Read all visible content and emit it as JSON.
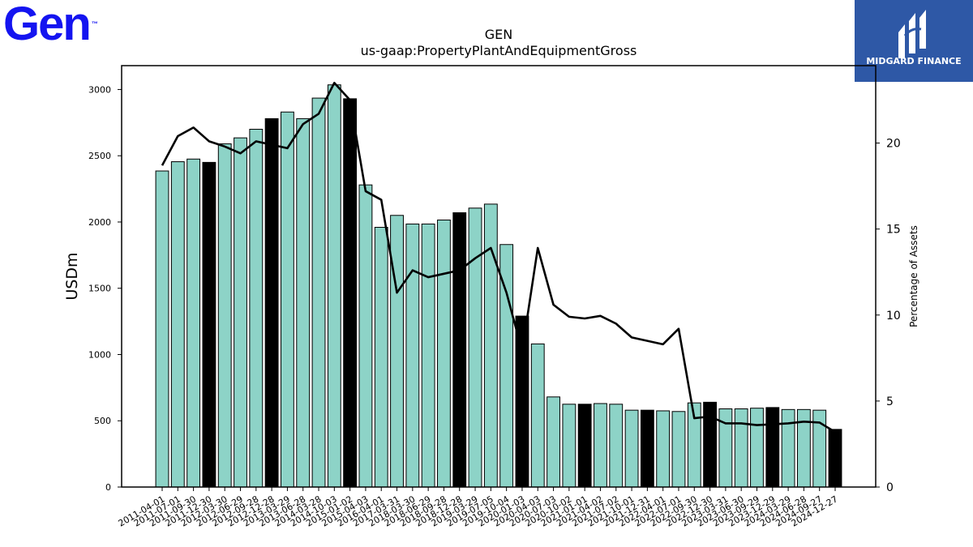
{
  "logos": {
    "left": {
      "text": "Gen",
      "mark": "™",
      "color": "#1414f0"
    },
    "right": {
      "text": "MIDGARD FINANCE",
      "color": "#2e58a6"
    }
  },
  "chart_data": {
    "type": "bar",
    "title": "GEN",
    "subtitle": "us-gaap:PropertyPlantAndEquipmentGross",
    "ylabel": "USDm",
    "y2label": "Percentage of Assets",
    "ylim": [
      0,
      3180
    ],
    "y2lim": [
      0,
      24.5
    ],
    "yticks": [
      0,
      500,
      1000,
      1500,
      2000,
      2500,
      3000
    ],
    "y2ticks": [
      0,
      5,
      10,
      15,
      20
    ],
    "grid": false,
    "bar_color": "#8dd3c7",
    "highlight_color": "#000000",
    "line_color": "#000000",
    "categories": [
      "2011-04-01",
      "2011-07-01",
      "2011-09-30",
      "2011-12-30",
      "2012-03-30",
      "2012-06-29",
      "2012-09-28",
      "2012-12-28",
      "2013-03-29",
      "2013-06-28",
      "2014-03-28",
      "2014-10-03",
      "2015-01-02",
      "2015-04-03",
      "2016-04-01",
      "2017-03-31",
      "2018-03-30",
      "2018-06-29",
      "2018-09-28",
      "2018-12-28",
      "2019-03-29",
      "2019-07-05",
      "2019-10-04",
      "2020-01-03",
      "2020-04-03",
      "2020-07-03",
      "2020-10-02",
      "2021-01-01",
      "2021-04-02",
      "2021-07-02",
      "2021-10-01",
      "2021-12-31",
      "2022-04-01",
      "2022-07-01",
      "2022-09-30",
      "2022-12-30",
      "2023-03-31",
      "2023-06-30",
      "2023-09-29",
      "2023-12-29",
      "2024-03-29",
      "2024-06-28",
      "2024-09-27",
      "2024-12-27"
    ],
    "series": [
      {
        "values": [
          2385,
          2455,
          2475,
          2450,
          2590,
          2635,
          2700,
          2780,
          2830,
          2780,
          2935,
          3035,
          2930,
          2280,
          1960,
          2050,
          1985,
          1985,
          2015,
          2070,
          2105,
          2135,
          1830,
          1290,
          1080,
          680,
          625,
          625,
          630,
          625,
          580,
          580,
          575,
          570,
          635,
          640,
          590,
          590,
          595,
          600,
          585,
          585,
          580,
          435
        ],
        "highlight": [
          false,
          false,
          false,
          true,
          false,
          false,
          false,
          true,
          false,
          false,
          false,
          false,
          true,
          false,
          false,
          false,
          false,
          false,
          false,
          true,
          false,
          false,
          false,
          true,
          false,
          false,
          false,
          true,
          false,
          false,
          false,
          true,
          false,
          false,
          false,
          true,
          false,
          false,
          false,
          true,
          false,
          false,
          false,
          true
        ]
      },
      {
        "name": "Percentage of Assets",
        "axis": "right",
        "values": [
          18.7,
          20.4,
          20.9,
          20.1,
          19.8,
          19.4,
          20.1,
          19.9,
          19.7,
          21.1,
          21.7,
          23.5,
          22.5,
          17.2,
          16.7,
          11.3,
          12.6,
          12.2,
          12.4,
          12.6,
          13.3,
          13.9,
          11.3,
          7.9,
          13.9,
          10.6,
          9.9,
          9.8,
          9.95,
          9.5,
          8.7,
          8.5,
          8.3,
          9.2,
          4.0,
          4.1,
          3.7,
          3.7,
          3.6,
          3.65,
          3.7,
          3.8,
          3.75,
          3.2
        ]
      }
    ]
  }
}
